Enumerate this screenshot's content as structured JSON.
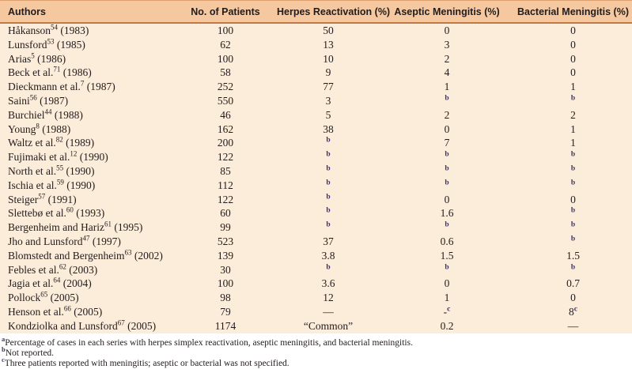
{
  "theme": {
    "header_bg": "#f5c89f",
    "row_bg": "#fcecda",
    "header_rule": "#c07a45",
    "header_top": "#dba06e",
    "text": "#221c1c",
    "footnote_accent": "#3b3368",
    "page_bg": "#ffffff"
  },
  "table": {
    "columns": [
      "Authors",
      "No. of Patients",
      "Herpes Reactivation (%)",
      "Aseptic Meningitis (%)",
      "Bacterial Meningitis (%)"
    ],
    "rows": [
      {
        "author": "Håkanson",
        "ref": "54",
        "year": "(1983)",
        "patients": "100",
        "herpes": {
          "text": "50"
        },
        "aseptic": {
          "text": "0"
        },
        "bacterial": {
          "text": "0"
        }
      },
      {
        "author": "Lunsford",
        "ref": "53",
        "year": "(1985)",
        "patients": "62",
        "herpes": {
          "text": "13"
        },
        "aseptic": {
          "text": "3"
        },
        "bacterial": {
          "text": "0"
        }
      },
      {
        "author": "Arias",
        "ref": "5",
        "year": "(1986)",
        "patients": "100",
        "herpes": {
          "text": "10"
        },
        "aseptic": {
          "text": "2"
        },
        "bacterial": {
          "text": "0"
        }
      },
      {
        "author": "Beck et al.",
        "ref": "71",
        "year": "(1986)",
        "patients": "58",
        "herpes": {
          "text": "9"
        },
        "aseptic": {
          "text": "4"
        },
        "bacterial": {
          "text": "0"
        }
      },
      {
        "author": "Dieckmann et al.",
        "ref": "7",
        "year": "(1987)",
        "patients": "252",
        "herpes": {
          "text": "77"
        },
        "aseptic": {
          "text": "1"
        },
        "bacterial": {
          "text": "1"
        }
      },
      {
        "author": "Saini",
        "ref": "56",
        "year": "(1987)",
        "patients": "550",
        "herpes": {
          "text": "3"
        },
        "aseptic": {
          "sup": "b"
        },
        "bacterial": {
          "sup": "b"
        }
      },
      {
        "author": "Burchiel",
        "ref": "44",
        "year": "(1988)",
        "patients": "46",
        "herpes": {
          "text": "5"
        },
        "aseptic": {
          "text": "2"
        },
        "bacterial": {
          "text": "2"
        }
      },
      {
        "author": "Young",
        "ref": "8",
        "year": "(1988)",
        "patients": "162",
        "herpes": {
          "text": "38"
        },
        "aseptic": {
          "text": "0"
        },
        "bacterial": {
          "text": "1"
        }
      },
      {
        "author": "Waltz et al.",
        "ref": "82",
        "year": "(1989)",
        "patients": "200",
        "herpes": {
          "sup": "b"
        },
        "aseptic": {
          "text": "7"
        },
        "bacterial": {
          "text": "1"
        }
      },
      {
        "author": "Fujimaki et al.",
        "ref": "12",
        "year": "(1990)",
        "patients": "122",
        "herpes": {
          "sup": "b"
        },
        "aseptic": {
          "sup": "b"
        },
        "bacterial": {
          "sup": "b"
        }
      },
      {
        "author": "North et al.",
        "ref": "55",
        "year": "(1990)",
        "patients": "85",
        "herpes": {
          "sup": "b"
        },
        "aseptic": {
          "sup": "b"
        },
        "bacterial": {
          "sup": "b"
        }
      },
      {
        "author": "Ischia et al.",
        "ref": "59",
        "year": "(1990)",
        "patients": "112",
        "herpes": {
          "sup": "b"
        },
        "aseptic": {
          "sup": "b"
        },
        "bacterial": {
          "sup": "b"
        }
      },
      {
        "author": "Steiger",
        "ref": "57",
        "year": "(1991)",
        "patients": "122",
        "herpes": {
          "sup": "b"
        },
        "aseptic": {
          "text": "0"
        },
        "bacterial": {
          "text": "0"
        }
      },
      {
        "author": "Slettebø et al.",
        "ref": "60",
        "year": "(1993)",
        "patients": "60",
        "herpes": {
          "sup": "b"
        },
        "aseptic": {
          "text": "1.6"
        },
        "bacterial": {
          "sup": "b"
        }
      },
      {
        "author": "Bergenheim and Hariz",
        "ref": "61",
        "year": "(1995)",
        "patients": "99",
        "herpes": {
          "sup": "b"
        },
        "aseptic": {
          "sup": "b"
        },
        "bacterial": {
          "sup": "b"
        }
      },
      {
        "author": "Jho and Lunsford",
        "ref": "47",
        "year": "(1997)",
        "patients": "523",
        "herpes": {
          "text": "37"
        },
        "aseptic": {
          "text": "0.6"
        },
        "bacterial": {
          "sup": "b"
        }
      },
      {
        "author": "Blomstedt and Bergenheim",
        "ref": "63",
        "year": "(2002)",
        "patients": "139",
        "herpes": {
          "text": "3.8"
        },
        "aseptic": {
          "text": "1.5"
        },
        "bacterial": {
          "text": "1.5"
        }
      },
      {
        "author": "Febles et al.",
        "ref": "62",
        "year": "(2003)",
        "patients": "30",
        "herpes": {
          "sup": "b"
        },
        "aseptic": {
          "sup": "b"
        },
        "bacterial": {
          "sup": "b"
        }
      },
      {
        "author": "Jagia et al.",
        "ref": "64",
        "year": "(2004)",
        "patients": "100",
        "herpes": {
          "text": "3.6"
        },
        "aseptic": {
          "text": "0"
        },
        "bacterial": {
          "text": "0.7"
        }
      },
      {
        "author": "Pollock",
        "ref": "65",
        "year": "(2005)",
        "patients": "98",
        "herpes": {
          "text": "12"
        },
        "aseptic": {
          "text": "1"
        },
        "bacterial": {
          "text": "0"
        }
      },
      {
        "author": "Henson et al.",
        "ref": "66",
        "year": "(2005)",
        "patients": "79",
        "herpes": {
          "text": "—"
        },
        "aseptic": {
          "text": "-",
          "sup": "c"
        },
        "bacterial": {
          "text": "8",
          "sup": "c"
        }
      },
      {
        "author": "Kondziolka and Lunsford",
        "ref": "67",
        "year": "(2005)",
        "patients": "1174",
        "herpes": {
          "text": "“Common”"
        },
        "aseptic": {
          "text": "0.2"
        },
        "bacterial": {
          "text": "—"
        }
      }
    ]
  },
  "footnotes": [
    {
      "marker": "a",
      "text": "Percentage of cases in each series with herpes simplex reactivation, aseptic meningitis, and bacterial meningitis."
    },
    {
      "marker": "b",
      "text": "Not reported."
    },
    {
      "marker": "c",
      "text": "Three patients reported with meningitis; aseptic or bacterial was not specified."
    }
  ]
}
